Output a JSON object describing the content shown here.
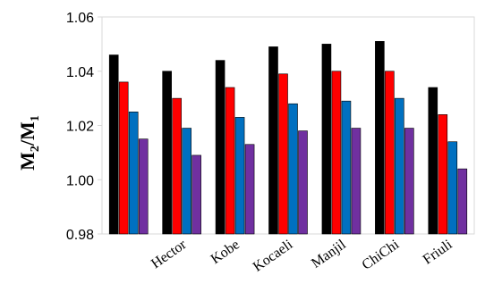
{
  "chart_data": {
    "type": "bar",
    "categories": [
      "",
      "Hector",
      "Kobe",
      "Kocaeli",
      "Manjil",
      "ChiChi",
      "Friuli"
    ],
    "series": [
      {
        "color": "#000000",
        "values": [
          1.046,
          1.04,
          1.044,
          1.049,
          1.05,
          1.051,
          1.034
        ]
      },
      {
        "color": "#ff0000",
        "values": [
          1.036,
          1.03,
          1.034,
          1.039,
          1.04,
          1.04,
          1.024
        ]
      },
      {
        "color": "#0070c0",
        "values": [
          1.025,
          1.019,
          1.023,
          1.028,
          1.029,
          1.03,
          1.014
        ]
      },
      {
        "color": "#7030a0",
        "values": [
          1.015,
          1.009,
          1.013,
          1.018,
          1.019,
          1.019,
          1.004
        ]
      }
    ],
    "ylabel_main": "M",
    "ylabel_sub1": "2",
    "ylabel_sep": "/M",
    "ylabel_sub2": "1",
    "ylim": [
      0.98,
      1.06
    ],
    "yticks": [
      "0.98",
      "1.00",
      "1.02",
      "1.04",
      "1.06"
    ],
    "grid": false
  }
}
